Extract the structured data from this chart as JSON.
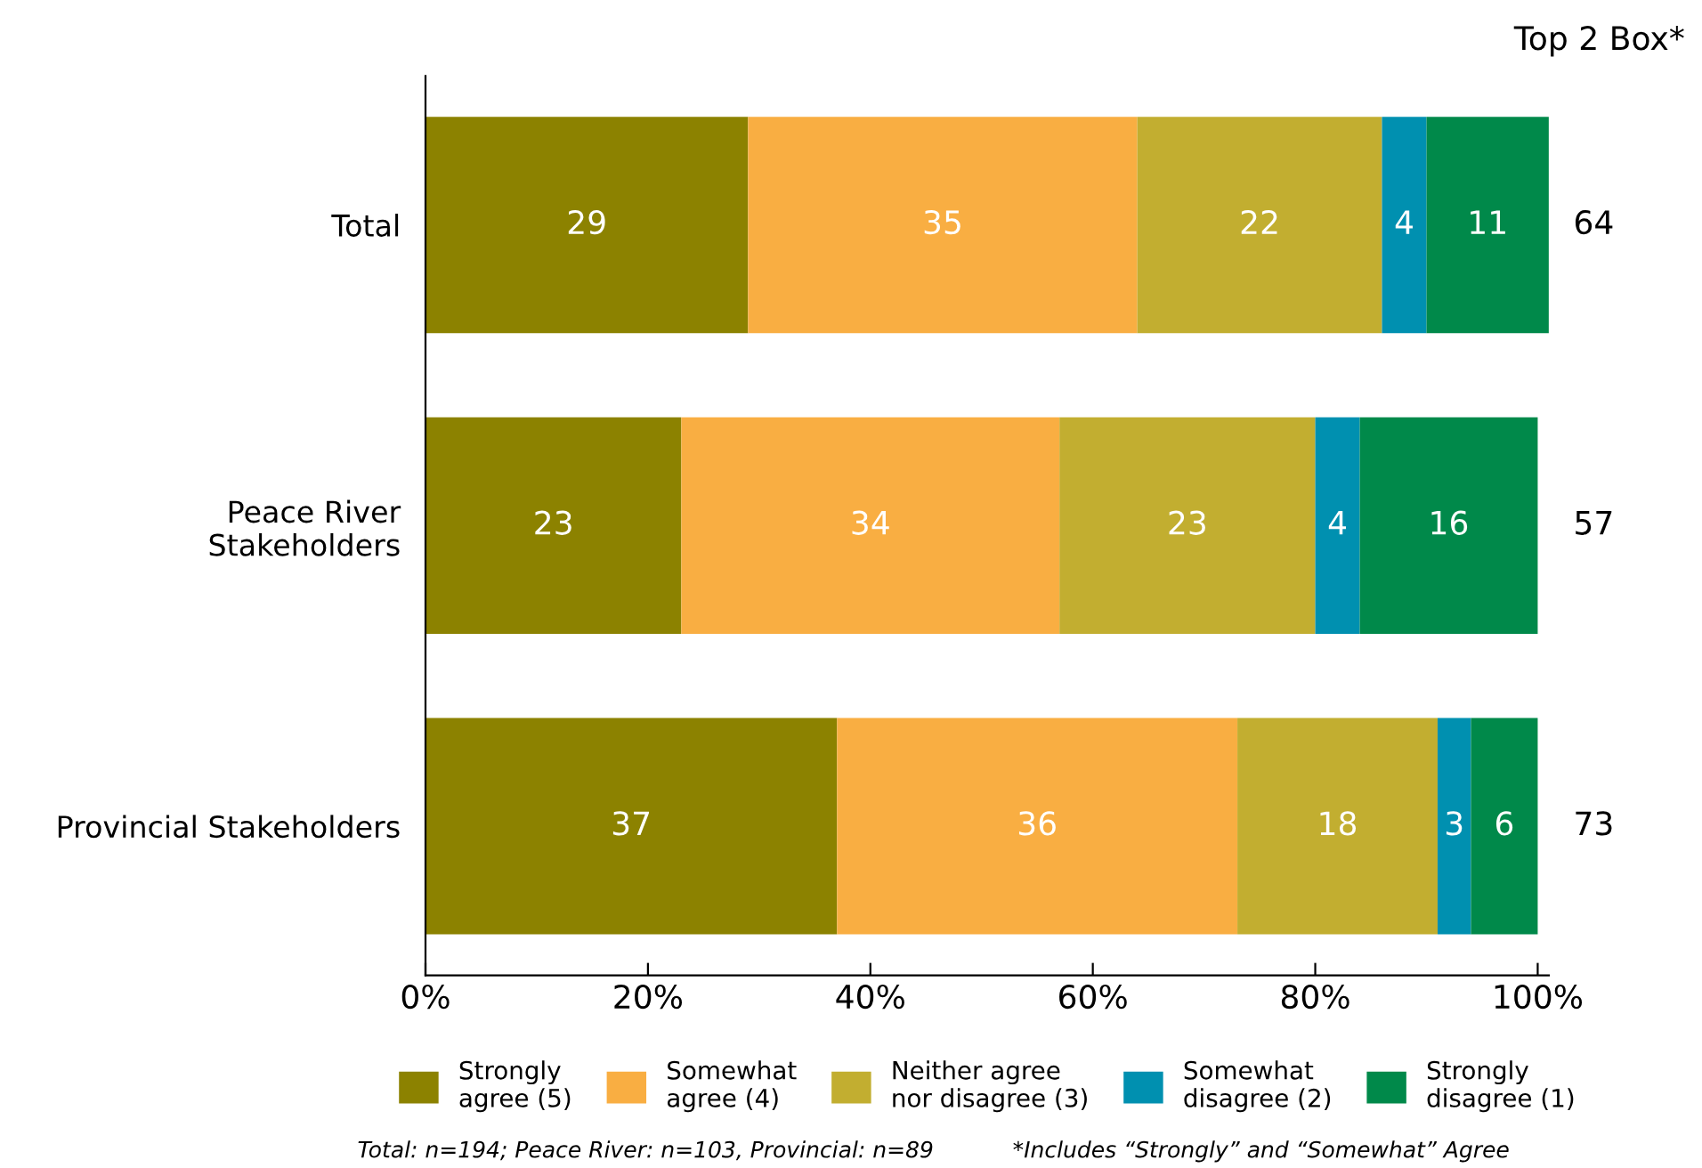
{
  "chart_data": {
    "type": "bar",
    "orientation": "horizontal",
    "stacked": true,
    "data_labels": true,
    "grid": false,
    "legend": "bottom",
    "categories": [
      "Total",
      "Peace River\nStakeholders",
      "Provincial Stakeholders"
    ],
    "series": [
      {
        "name": "Strongly\nagree (5)",
        "color": "#8c8200",
        "values": [
          29,
          23,
          37
        ]
      },
      {
        "name": "Somewhat\nagree (4)",
        "color": "#f9ae42",
        "values": [
          35,
          34,
          36
        ]
      },
      {
        "name": "Neither agree\nnor disagree (3)",
        "color": "#c2ae30",
        "values": [
          22,
          23,
          18
        ]
      },
      {
        "name": "Somewhat\ndisagree (2)",
        "color": "#0090b0",
        "values": [
          4,
          4,
          3
        ]
      },
      {
        "name": "Strongly\ndisagree (1)",
        "color": "#00894a",
        "values": [
          11,
          16,
          6
        ]
      }
    ],
    "xlim": [
      0,
      101
    ],
    "xticks": [
      {
        "value": 0,
        "label": "0%"
      },
      {
        "value": 20,
        "label": "20%"
      },
      {
        "value": 40,
        "label": "40%"
      },
      {
        "value": 60,
        "label": "60%"
      },
      {
        "value": 80,
        "label": "80%"
      },
      {
        "value": 100,
        "label": "100%"
      }
    ],
    "annotations": [
      "Top 2 Box*",
      "64",
      "57",
      "73",
      "Total: n=194; Peace River: n=103, Provincial: n=89",
      "*Includes “Strongly” and “Somewhat” Agree"
    ]
  }
}
